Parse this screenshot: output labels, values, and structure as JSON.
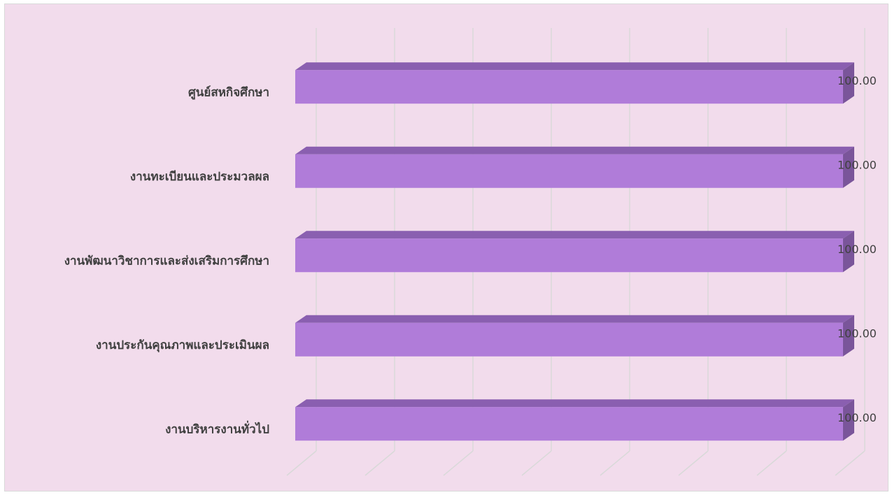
{
  "chart_data": {
    "type": "bar3d_horizontal",
    "categories": [
      "ศูนย์สหกิจศึกษา",
      "งานทะเบียนและประมวลผล",
      "งานพัฒนาวิชาการและส่งเสริมการศึกษา",
      "งานประกันคุณภาพและประเมินผล",
      "งานบริหารงานทั่วไป"
    ],
    "values": [
      100,
      100,
      100,
      100,
      100
    ],
    "value_labels": [
      "100.00",
      "100.00",
      "100.00",
      "100.00",
      "100.00"
    ],
    "color": "#b07cd9",
    "xlim": [
      0,
      100
    ],
    "grid": true
  }
}
